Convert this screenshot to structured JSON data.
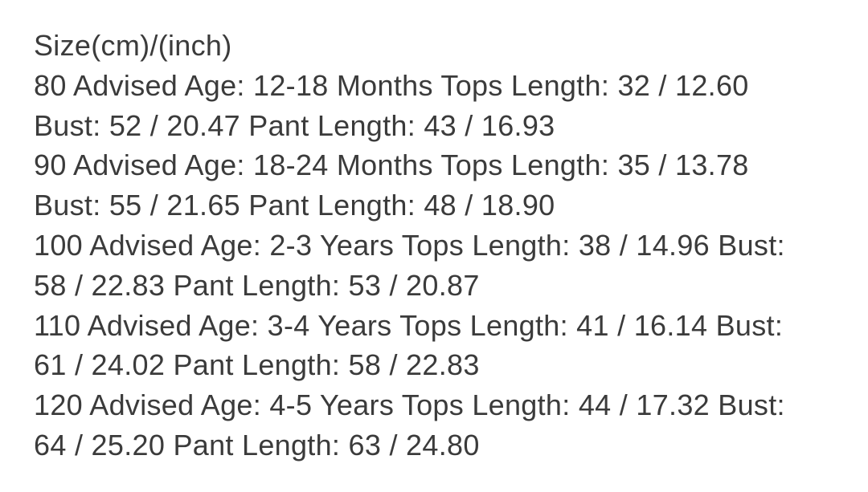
{
  "page": {
    "background": "#ffffff",
    "text_color": "#3b3b3b"
  },
  "size_chart": {
    "title": "Size(cm)/(inch)",
    "lines": [
      "80 Advised Age: 12-18 Months Tops Length: 32 / 12.60",
      "Bust: 52 / 20.47 Pant Length: 43 / 16.93",
      "90 Advised Age: 18-24 Months Tops Length: 35 / 13.78",
      "Bust: 55 / 21.65 Pant Length: 48 / 18.90",
      "100 Advised Age: 2-3 Years Tops Length: 38 / 14.96 Bust:",
      "58 / 22.83 Pant Length: 53 / 20.87",
      "110 Advised Age: 3-4 Years Tops Length: 41 / 16.14 Bust:",
      "61 / 24.02 Pant Length: 58 / 22.83",
      "120 Advised Age: 4-5 Years Tops Length: 44 / 17.32 Bust:",
      "64 / 25.20 Pant Length: 63 / 24.80"
    ],
    "entries": [
      {
        "size_cm": "80",
        "advised_age": "12-18 Months",
        "tops_length": "32 / 12.60",
        "bust": "52 / 20.47",
        "pant_length": "43 / 16.93"
      },
      {
        "size_cm": "90",
        "advised_age": "18-24 Months",
        "tops_length": "35 / 13.78",
        "bust": "55 / 21.65",
        "pant_length": "48 / 18.90"
      },
      {
        "size_cm": "100",
        "advised_age": "2-3 Years",
        "tops_length": "38 / 14.96",
        "bust": "58 / 22.83",
        "pant_length": "53 / 20.87"
      },
      {
        "size_cm": "110",
        "advised_age": "3-4 Years",
        "tops_length": "41 / 16.14",
        "bust": "61 / 24.02",
        "pant_length": "58 / 22.83"
      },
      {
        "size_cm": "120",
        "advised_age": "4-5 Years",
        "tops_length": "44 / 17.32",
        "bust": "64 / 25.20",
        "pant_length": "63 / 24.80"
      }
    ]
  }
}
